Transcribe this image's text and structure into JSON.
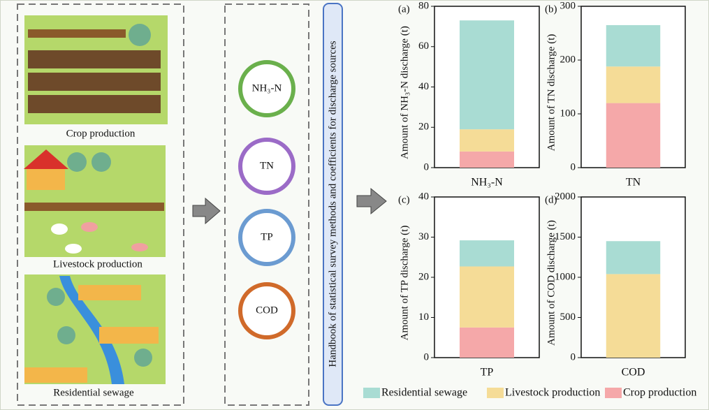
{
  "sources": [
    "Crop production",
    "Livestock production",
    "Residential sewage"
  ],
  "pollutants": [
    "NH₃-N",
    "TN",
    "TP",
    "COD"
  ],
  "handbook": "Handbook of statistical survey methods and coefficients for discharge sources",
  "chart_data": [
    {
      "type": "bar",
      "panel": "(a)",
      "ylabel": "Amount of NH₃-N discharge (t)",
      "categories": [
        "NH₃-N"
      ],
      "ylim": [
        0,
        80
      ],
      "yticks": [
        0,
        20,
        40,
        60,
        80
      ],
      "series": [
        {
          "name": "Crop production",
          "color": "#f5a8a9",
          "values": [
            8
          ]
        },
        {
          "name": "Livestock production",
          "color": "#f5dc97",
          "values": [
            11
          ]
        },
        {
          "name": "Residential sewage",
          "color": "#a9dcd3",
          "values": [
            54
          ]
        }
      ]
    },
    {
      "type": "bar",
      "panel": "(b)",
      "ylabel": "Amount of TN discharge (t)",
      "categories": [
        "TN"
      ],
      "ylim": [
        0,
        300
      ],
      "yticks": [
        0,
        100,
        200,
        300
      ],
      "series": [
        {
          "name": "Crop production",
          "color": "#f5a8a9",
          "values": [
            120
          ]
        },
        {
          "name": "Livestock production",
          "color": "#f5dc97",
          "values": [
            68
          ]
        },
        {
          "name": "Residential sewage",
          "color": "#a9dcd3",
          "values": [
            77
          ]
        }
      ]
    },
    {
      "type": "bar",
      "panel": "(c)",
      "ylabel": "Amount of TP discharge (t)",
      "categories": [
        "TP"
      ],
      "ylim": [
        0,
        40
      ],
      "yticks": [
        0,
        10,
        20,
        30,
        40
      ],
      "series": [
        {
          "name": "Crop production",
          "color": "#f5a8a9",
          "values": [
            7.5
          ]
        },
        {
          "name": "Livestock production",
          "color": "#f5dc97",
          "values": [
            15.2
          ]
        },
        {
          "name": "Residential sewage",
          "color": "#a9dcd3",
          "values": [
            6.5
          ]
        }
      ]
    },
    {
      "type": "bar",
      "panel": "(d)",
      "ylabel": "Amount of COD discharge (t)",
      "categories": [
        "COD"
      ],
      "ylim": [
        0,
        2000
      ],
      "yticks": [
        0,
        500,
        1000,
        1500,
        2000
      ],
      "series": [
        {
          "name": "Crop production",
          "color": "#f5a8a9",
          "values": [
            0
          ]
        },
        {
          "name": "Livestock production",
          "color": "#f5dc97",
          "values": [
            1040
          ]
        },
        {
          "name": "Residential sewage",
          "color": "#a9dcd3",
          "values": [
            410
          ]
        }
      ]
    }
  ]
}
